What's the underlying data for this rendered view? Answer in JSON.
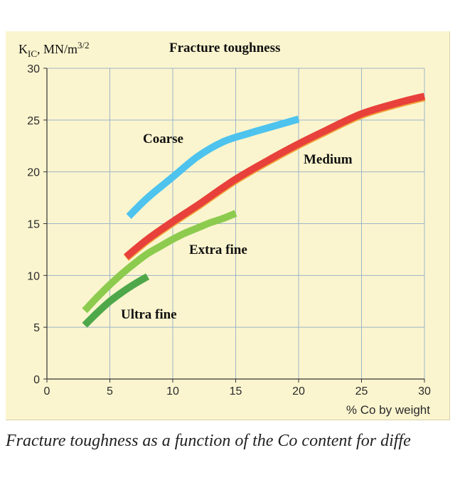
{
  "chart_data": {
    "type": "line",
    "title": "Fracture toughness",
    "ylabel_main": "K",
    "ylabel_sub": "IC",
    "ylabel_rest": ", MN/m",
    "ylabel_sup": "3/2",
    "xlabel": "% Co by weight",
    "xlim": [
      0,
      30
    ],
    "ylim": [
      0,
      30
    ],
    "xticks": [
      0,
      5,
      10,
      15,
      20,
      25,
      30
    ],
    "yticks": [
      0,
      5,
      10,
      15,
      20,
      25,
      30
    ],
    "grid": true,
    "series": [
      {
        "name": "Coarse",
        "color": "#4dc3ee",
        "x": [
          6.5,
          8,
          10,
          12,
          14,
          16,
          18,
          20
        ],
        "y": [
          15.7,
          17.5,
          19.5,
          21.5,
          22.9,
          23.7,
          24.4,
          25.1
        ]
      },
      {
        "name": "Medium",
        "color": "#e8403a",
        "x": [
          6.3,
          8,
          10,
          12,
          15,
          18,
          20,
          22,
          25,
          28,
          30
        ],
        "y": [
          11.8,
          13.5,
          15.2,
          16.8,
          19.3,
          21.4,
          22.7,
          23.9,
          25.6,
          26.7,
          27.3
        ]
      },
      {
        "name": "Extra fine",
        "color": "#8ccb4e",
        "x": [
          3.0,
          4,
          5,
          6,
          7,
          8,
          9,
          10,
          11,
          12,
          13,
          14,
          15
        ],
        "y": [
          6.6,
          7.9,
          9.1,
          10.2,
          11.2,
          12.1,
          12.8,
          13.5,
          14.1,
          14.6,
          15.1,
          15.5,
          16.0
        ]
      },
      {
        "name": "Ultra fine",
        "color": "#4ea84a",
        "x": [
          3.0,
          4,
          5,
          6,
          7,
          8
        ],
        "y": [
          5.2,
          6.4,
          7.5,
          8.4,
          9.2,
          9.9
        ]
      }
    ]
  },
  "caption": "Fracture toughness as a function of the Co content for diffe"
}
